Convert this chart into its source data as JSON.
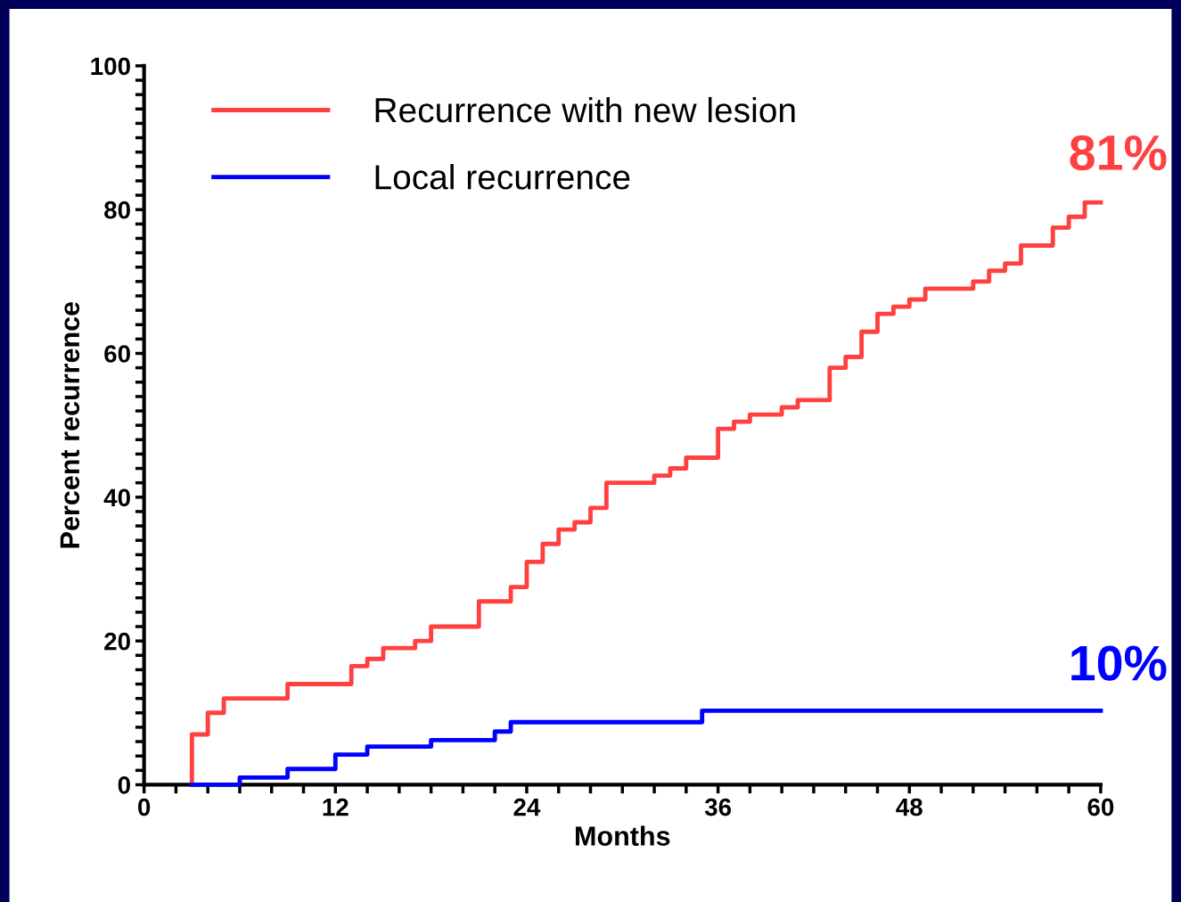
{
  "chart_data": {
    "type": "step",
    "xlabel": "Months",
    "ylabel": "Percent recurrence",
    "xlim": [
      0,
      60
    ],
    "ylim": [
      0,
      100
    ],
    "xticks": [
      0,
      {
        "value": 2,
        "label": null
      },
      {
        "value": 4,
        "label": null
      },
      {
        "value": 6,
        "label": null
      },
      {
        "value": 8,
        "label": null
      },
      {
        "value": 10,
        "label": null
      },
      12,
      {
        "value": 14,
        "label": null
      },
      {
        "value": 16,
        "label": null
      },
      {
        "value": 18,
        "label": null
      },
      {
        "value": 20,
        "label": null
      },
      {
        "value": 22,
        "label": null
      },
      24,
      {
        "value": 26,
        "label": null
      },
      {
        "value": 28,
        "label": null
      },
      {
        "value": 30,
        "label": null
      },
      {
        "value": 32,
        "label": null
      },
      {
        "value": 34,
        "label": null
      },
      36,
      {
        "value": 38,
        "label": null
      },
      {
        "value": 40,
        "label": null
      },
      {
        "value": 42,
        "label": null
      },
      {
        "value": 44,
        "label": null
      },
      {
        "value": 46,
        "label": null
      },
      48,
      {
        "value": 50,
        "label": null
      },
      {
        "value": 52,
        "label": null
      },
      {
        "value": 54,
        "label": null
      },
      {
        "value": 56,
        "label": null
      },
      {
        "value": 58,
        "label": null
      },
      60
    ],
    "yticks": [
      0,
      {
        "value": 2,
        "label": null
      },
      {
        "value": 4,
        "label": null
      },
      {
        "value": 6,
        "label": null
      },
      {
        "value": 8,
        "label": null
      },
      {
        "value": 10,
        "label": null
      },
      {
        "value": 12,
        "label": null
      },
      {
        "value": 14,
        "label": null
      },
      {
        "value": 16,
        "label": null
      },
      {
        "value": 18,
        "label": null
      },
      20,
      {
        "value": 22,
        "label": null
      },
      {
        "value": 24,
        "label": null
      },
      {
        "value": 26,
        "label": null
      },
      {
        "value": 28,
        "label": null
      },
      {
        "value": 30,
        "label": null
      },
      {
        "value": 32,
        "label": null
      },
      {
        "value": 34,
        "label": null
      },
      {
        "value": 36,
        "label": null
      },
      {
        "value": 38,
        "label": null
      },
      40,
      {
        "value": 42,
        "label": null
      },
      {
        "value": 44,
        "label": null
      },
      {
        "value": 46,
        "label": null
      },
      {
        "value": 48,
        "label": null
      },
      {
        "value": 50,
        "label": null
      },
      {
        "value": 52,
        "label": null
      },
      {
        "value": 54,
        "label": null
      },
      {
        "value": 56,
        "label": null
      },
      {
        "value": 58,
        "label": null
      },
      60,
      {
        "value": 62,
        "label": null
      },
      {
        "value": 64,
        "label": null
      },
      {
        "value": 66,
        "label": null
      },
      {
        "value": 68,
        "label": null
      },
      {
        "value": 70,
        "label": null
      },
      {
        "value": 72,
        "label": null
      },
      {
        "value": 74,
        "label": null
      },
      {
        "value": 76,
        "label": null
      },
      {
        "value": 78,
        "label": null
      },
      80,
      {
        "value": 82,
        "label": null
      },
      {
        "value": 84,
        "label": null
      },
      {
        "value": 86,
        "label": null
      },
      {
        "value": 88,
        "label": null
      },
      {
        "value": 90,
        "label": null
      },
      {
        "value": 92,
        "label": null
      },
      {
        "value": 94,
        "label": null
      },
      {
        "value": 96,
        "label": null
      },
      {
        "value": 98,
        "label": null
      },
      100
    ],
    "grid": false,
    "legend": "top left",
    "marker": "none",
    "line_style": "solid",
    "series": [
      {
        "name": "Recurrence with new lesion",
        "color": "#ff4040",
        "x": [
          3,
          3,
          4,
          5,
          9,
          13,
          14,
          15,
          17,
          18,
          21,
          23,
          24,
          25,
          26,
          27,
          28,
          29,
          32,
          33,
          34,
          36,
          37,
          38,
          40,
          41,
          43,
          44,
          45,
          46,
          47,
          48,
          49,
          52,
          53,
          54,
          55,
          57,
          58,
          59,
          60
        ],
        "values": [
          0,
          7,
          10,
          12,
          14,
          16.5,
          17.5,
          19,
          20,
          22,
          25.5,
          27.5,
          31,
          33.5,
          35.5,
          36.5,
          38.5,
          42,
          43,
          44,
          45.5,
          49.5,
          50.5,
          51.5,
          52.5,
          53.5,
          58,
          59.5,
          63,
          65.5,
          66.5,
          67.5,
          69,
          70,
          71.5,
          72.5,
          75,
          77.5,
          79,
          81,
          81
        ]
      },
      {
        "name": "Local recurrence",
        "color": "#0000ff",
        "x": [
          3,
          6,
          9,
          12,
          14,
          18,
          22,
          23,
          35,
          60
        ],
        "values": [
          0,
          1,
          2.2,
          4.2,
          5.3,
          6.2,
          7.4,
          8.7,
          10.3,
          10.3
        ]
      }
    ],
    "annotations": [
      {
        "text": "81%",
        "x": 60,
        "y": 81
      },
      {
        "text": "10%",
        "x": 60,
        "y": 10
      }
    ]
  }
}
